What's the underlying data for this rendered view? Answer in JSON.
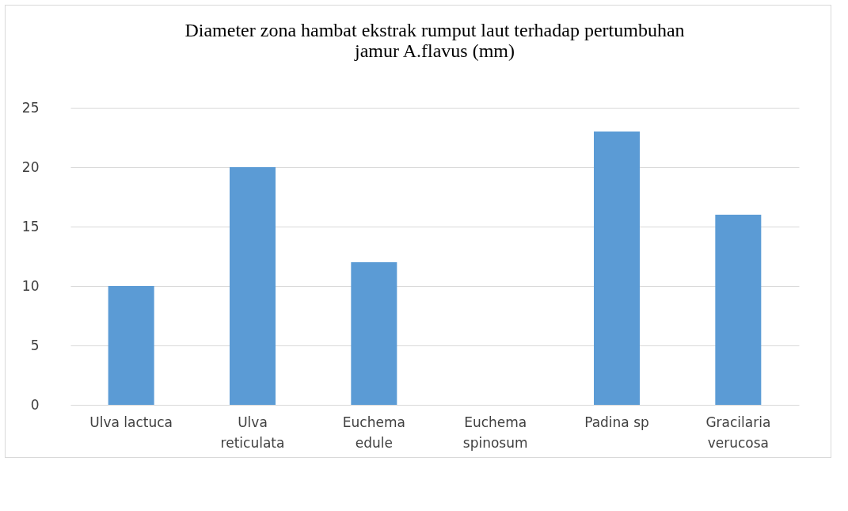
{
  "chart_data": {
    "type": "bar",
    "title": "Diameter zona hambat ekstrak rumput laut terhadap pertumbuhan jamur A.flavus (mm)",
    "categories": [
      "Ulva lactuca",
      "Ulva reticulata",
      "Euchema edule",
      "Euchema spinosum",
      "Padina sp",
      "Gracilaria verucosa"
    ],
    "values": [
      10,
      20,
      12,
      0,
      23,
      16
    ],
    "color": "#5b9bd5",
    "ylim": [
      0,
      25
    ],
    "yticks": [
      0,
      5,
      10,
      15,
      20,
      25
    ],
    "grid": "y"
  }
}
